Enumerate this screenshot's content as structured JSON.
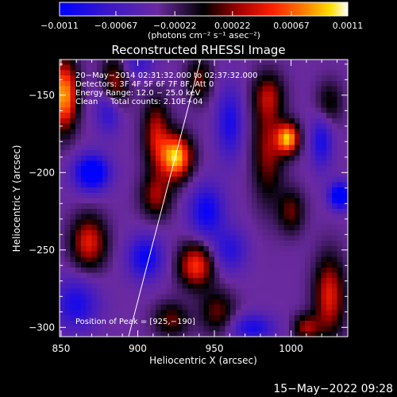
{
  "chart_data": {
    "type": "heatmap",
    "title": "Reconstructed RHESSI Image",
    "xlabel": "Heliocentric X (arcsec)",
    "ylabel": "Heliocentric Y (arcsec)",
    "xlim": [
      849,
      1037
    ],
    "ylim": [
      -306,
      -127
    ],
    "x_ticks": [
      850,
      900,
      950,
      1000
    ],
    "x_tick_labels": [
      "850",
      "900",
      "950",
      "1000"
    ],
    "y_ticks": [
      -150,
      -200,
      -250,
      -300
    ],
    "y_tick_labels": [
      "−150",
      "−200",
      "−250",
      "−300"
    ],
    "colorbar": {
      "range": [
        -0.0011,
        0.0011
      ],
      "ticks": [
        -0.0011,
        -0.00067,
        -0.00022,
        0.00022,
        0.00067,
        0.0011
      ],
      "tick_labels": [
        "−0.0011",
        "−0.00067",
        "−0.00022",
        "0.00022",
        "0.00067",
        "0.0011"
      ],
      "units_label": "(photons cm⁻² s⁻¹ asec⁻²)",
      "colormap": "RHESSI color table: blue → purple → black → red → orange → yellow → white"
    },
    "annotations": [
      "20−May−2014 02:31:32.000 to 02:37:32.000",
      "Detectors: 3F 4F 5F 6F 7F 8F, Att 0",
      "Energy Range: 12.0 − 25.0 keV",
      "Clean     Total counts: 2.10E+04"
    ],
    "peak_label": "Position of Peak = [925,−190]",
    "peak": {
      "x": 925,
      "y": -190
    },
    "limb_line": [
      [
        894,
        -306
      ],
      [
        941,
        -127
      ]
    ],
    "image_blobs": [
      {
        "x": 852,
        "y": -150,
        "value": 0.0011,
        "sx": 6,
        "sy": 16
      },
      {
        "x": 885,
        "y": -145,
        "value": 0.0006,
        "sx": 6,
        "sy": 14
      },
      {
        "x": 912,
        "y": -175,
        "value": 0.0006,
        "sx": 6,
        "sy": 16
      },
      {
        "x": 925,
        "y": -190,
        "value": 0.0012,
        "sx": 7,
        "sy": 10
      },
      {
        "x": 912,
        "y": -215,
        "value": 0.0005,
        "sx": 7,
        "sy": 10
      },
      {
        "x": 940,
        "y": -140,
        "value": 0.0004,
        "sx": 6,
        "sy": 10
      },
      {
        "x": 868,
        "y": -245,
        "value": 0.0007,
        "sx": 8,
        "sy": 12
      },
      {
        "x": 938,
        "y": -260,
        "value": 0.0008,
        "sx": 8,
        "sy": 10
      },
      {
        "x": 952,
        "y": -290,
        "value": 0.0004,
        "sx": 8,
        "sy": 10
      },
      {
        "x": 922,
        "y": -295,
        "value": 0.0004,
        "sx": 8,
        "sy": 8
      },
      {
        "x": 985,
        "y": -185,
        "value": 0.0005,
        "sx": 7,
        "sy": 24
      },
      {
        "x": 998,
        "y": -178,
        "value": 0.0011,
        "sx": 5,
        "sy": 7
      },
      {
        "x": 985,
        "y": -150,
        "value": 0.0004,
        "sx": 7,
        "sy": 10
      },
      {
        "x": 1000,
        "y": -225,
        "value": 0.0004,
        "sx": 6,
        "sy": 10
      },
      {
        "x": 1025,
        "y": -280,
        "value": 0.0007,
        "sx": 7,
        "sy": 18
      },
      {
        "x": 1010,
        "y": -300,
        "value": 0.0005,
        "sx": 6,
        "sy": 6
      },
      {
        "x": 1025,
        "y": -155,
        "value": 0.0003,
        "sx": 6,
        "sy": 10
      },
      {
        "x": 870,
        "y": -200,
        "value": -0.0011,
        "sx": 8,
        "sy": 8
      },
      {
        "x": 882,
        "y": -160,
        "value": -0.0008,
        "sx": 6,
        "sy": 10
      },
      {
        "x": 905,
        "y": -255,
        "value": -0.0008,
        "sx": 8,
        "sy": 10
      },
      {
        "x": 945,
        "y": -225,
        "value": -0.0008,
        "sx": 8,
        "sy": 12
      },
      {
        "x": 960,
        "y": -168,
        "value": -0.0007,
        "sx": 6,
        "sy": 16
      },
      {
        "x": 1032,
        "y": -215,
        "value": -0.0011,
        "sx": 5,
        "sy": 6
      },
      {
        "x": 1020,
        "y": -180,
        "value": -0.0007,
        "sx": 5,
        "sy": 12
      },
      {
        "x": 975,
        "y": -300,
        "value": -0.0007,
        "sx": 10,
        "sy": 6
      },
      {
        "x": 860,
        "y": -285,
        "value": -0.0007,
        "sx": 10,
        "sy": 12
      },
      {
        "x": 960,
        "y": -250,
        "value": -0.0006,
        "sx": 8,
        "sy": 10
      },
      {
        "x": 900,
        "y": -130,
        "value": -0.0005,
        "sx": 8,
        "sy": 6
      }
    ]
  },
  "footer": {
    "timestamp": "15−May−2022 09:28"
  }
}
